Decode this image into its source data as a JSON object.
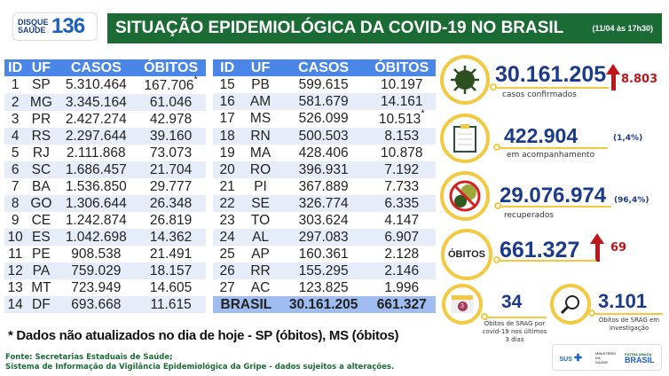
{
  "logo": {
    "line1": "DISQUE",
    "line2": "SAÚDE",
    "number": "136"
  },
  "header": {
    "title": "SITUAÇÃO EPIDEMIOLÓGICA DA COVID-19 NO BRASIL",
    "date": "(11/04 às 17h30)"
  },
  "table": {
    "columns": [
      "ID",
      "UF",
      "CASOS",
      "ÓBITOS"
    ],
    "left": [
      [
        "1",
        "SP",
        "5.310.464",
        "167.706",
        "*"
      ],
      [
        "2",
        "MG",
        "3.345.164",
        "61.046",
        ""
      ],
      [
        "3",
        "PR",
        "2.427.274",
        "42.978",
        ""
      ],
      [
        "4",
        "RS",
        "2.297.644",
        "39.160",
        ""
      ],
      [
        "5",
        "RJ",
        "2.111.868",
        "73.073",
        ""
      ],
      [
        "6",
        "SC",
        "1.686.457",
        "21.704",
        ""
      ],
      [
        "7",
        "BA",
        "1.536.850",
        "29.777",
        ""
      ],
      [
        "8",
        "GO",
        "1.306.644",
        "26.348",
        ""
      ],
      [
        "9",
        "CE",
        "1.242.874",
        "26.819",
        ""
      ],
      [
        "10",
        "ES",
        "1.042.698",
        "14.362",
        ""
      ],
      [
        "11",
        "PE",
        "908.538",
        "21.491",
        ""
      ],
      [
        "12",
        "PA",
        "759.029",
        "18.157",
        ""
      ],
      [
        "13",
        "MT",
        "723.949",
        "14.605",
        ""
      ],
      [
        "14",
        "DF",
        "693.668",
        "11.615",
        ""
      ]
    ],
    "right": [
      [
        "15",
        "PB",
        "599.615",
        "10.197",
        ""
      ],
      [
        "16",
        "AM",
        "581.679",
        "14.161",
        ""
      ],
      [
        "17",
        "MS",
        "526.099",
        "10.513",
        "*"
      ],
      [
        "18",
        "RN",
        "500.503",
        "8.153",
        ""
      ],
      [
        "19",
        "MA",
        "428.406",
        "10.878",
        ""
      ],
      [
        "20",
        "RO",
        "396.931",
        "7.192",
        ""
      ],
      [
        "21",
        "PI",
        "367.889",
        "7.733",
        ""
      ],
      [
        "22",
        "SE",
        "326.774",
        "6.335",
        ""
      ],
      [
        "23",
        "TO",
        "303.624",
        "4.147",
        ""
      ],
      [
        "24",
        "AL",
        "297.083",
        "6.907",
        ""
      ],
      [
        "25",
        "AP",
        "160.361",
        "2.128",
        ""
      ],
      [
        "26",
        "RR",
        "155.295",
        "2.146",
        ""
      ],
      [
        "27",
        "AC",
        "123.825",
        "1.996",
        ""
      ]
    ],
    "total": {
      "label": "BRASIL",
      "casos": "30.161.205",
      "obitos": "661.327"
    }
  },
  "stats": {
    "confirmed": {
      "value": "30.161.205",
      "label": "casos confirmados",
      "increase": "8.803",
      "icon": "virus-icon"
    },
    "monitoring": {
      "value": "422.904",
      "label": "em acompanhamento",
      "pct": "(1,4%)",
      "icon": "clipboard-icon"
    },
    "recovered": {
      "value": "29.076.974",
      "label": "recuperados",
      "pct": "(96,4%)",
      "icon": "no-virus-icon"
    },
    "deaths": {
      "badge": "ÓBITOS",
      "value": "661.327",
      "increase": "69"
    },
    "srag3": {
      "value": "34",
      "label": "Óbitos de SRAG por covid-19 nos últimos 3 dias",
      "cal": "3"
    },
    "srag_inv": {
      "value": "3.101",
      "label": "Óbitos de SRAG em investigação"
    }
  },
  "colors": {
    "green": "#1a6b34",
    "blue": "#4a86e8",
    "yellow": "#f3c940",
    "red": "#c0151b",
    "navy": "#1b3a8a"
  },
  "note": "* Dados não atualizados no dia de hoje - SP (óbitos), MS (óbitos)",
  "source": {
    "line1": "Fonte: Secretarias Estaduais de Saúde;",
    "line2": "Sistema de Informação da Vigilância Epidemiológica da Gripe - dados sujeitos a alterações."
  },
  "footer": {
    "sus": "SUS",
    "ministry": "MINISTÉRIO DA SAÚDE",
    "gov_top": "PÁTRIA AMADA",
    "gov": "BRASIL"
  }
}
